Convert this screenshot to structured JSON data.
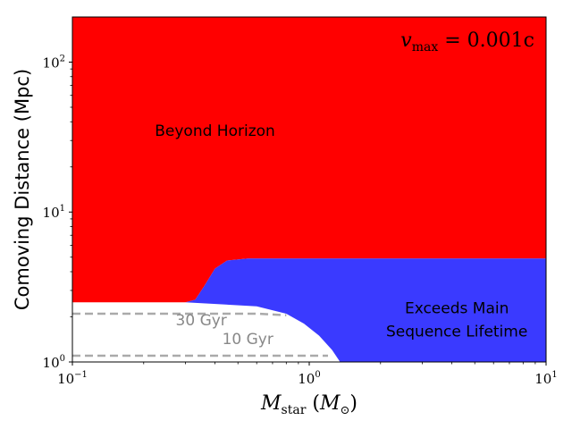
{
  "chart_data": {
    "type": "area",
    "xscale": "log",
    "yscale": "log",
    "xlim": [
      0.1,
      10
    ],
    "ylim": [
      1,
      200
    ],
    "xlabel": {
      "base": "M",
      "sub": "star",
      "unit_base": "M",
      "unit_sub": "⊙"
    },
    "ylabel": "Comoving Distance (Mpc)",
    "x_ticks": [
      {
        "value": 0.1,
        "base": "10",
        "exp": "−1"
      },
      {
        "value": 1,
        "base": "10",
        "exp": "0"
      },
      {
        "value": 10,
        "base": "10",
        "exp": "1"
      }
    ],
    "y_ticks": [
      {
        "value": 1,
        "base": "10",
        "exp": "0"
      },
      {
        "value": 10,
        "base": "10",
        "exp": "1"
      },
      {
        "value": 100,
        "base": "10",
        "exp": "2"
      }
    ],
    "title_annotation": {
      "lhs": "v",
      "lhs_sub": "max",
      "rhs": "= 0.001c"
    },
    "regions": [
      {
        "label": "Beyond Horizon",
        "color": "#ff0000",
        "lower_boundary": [
          [
            0.1,
            2.5
          ],
          [
            0.3,
            2.5
          ],
          [
            0.33,
            2.6
          ],
          [
            0.36,
            3.2
          ],
          [
            0.4,
            4.2
          ],
          [
            0.45,
            4.75
          ],
          [
            0.55,
            4.9
          ],
          [
            1,
            4.9
          ],
          [
            10,
            4.9
          ]
        ],
        "label_at": [
          0.4,
          35
        ]
      },
      {
        "label": "Exceeds Main\nSequence Lifetime",
        "color": "#3a3aff",
        "lower_boundary": [
          [
            0.3,
            2.5
          ],
          [
            0.6,
            2.35
          ],
          [
            0.8,
            2.1
          ],
          [
            0.95,
            1.8
          ],
          [
            1.1,
            1.5
          ],
          [
            1.25,
            1.2
          ],
          [
            1.35,
            1.0
          ]
        ],
        "label_lines": [
          "Exceeds Main",
          "Sequence Lifetime"
        ],
        "label_at": [
          4.2,
          2.3
        ]
      }
    ],
    "lines": [
      {
        "label": "30 Gyr",
        "color": "#aaaaaa",
        "style": "dashed",
        "points": [
          [
            0.1,
            2.1
          ],
          [
            0.6,
            2.1
          ],
          [
            0.8,
            2.05
          ]
        ],
        "label_at": [
          0.35,
          1.76
        ]
      },
      {
        "label": "10 Gyr",
        "color": "#aaaaaa",
        "style": "dashed",
        "points": [
          [
            0.1,
            1.1
          ],
          [
            0.9,
            1.1
          ],
          [
            1.2,
            1.1
          ]
        ],
        "label_at": [
          0.55,
          1.32
        ]
      }
    ]
  }
}
